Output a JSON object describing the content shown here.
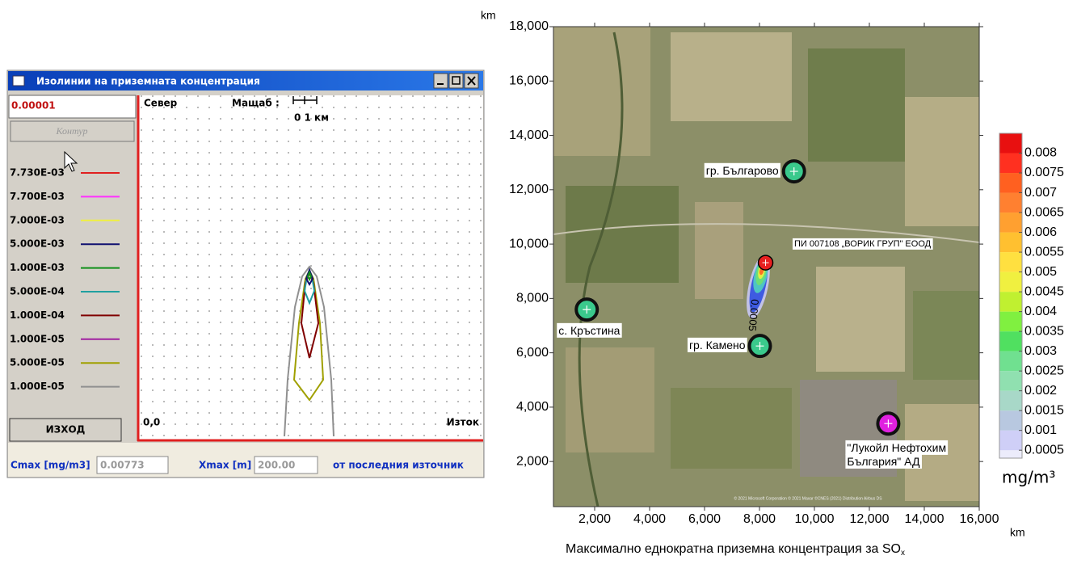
{
  "window": {
    "title": "Изолинии на приземната концентрация",
    "input": "0.00001",
    "contour_button": "Контур",
    "legend": [
      {
        "label": "7.730E-03",
        "color": "#e02020"
      },
      {
        "label": "7.700E-03",
        "color": "#ff30ff"
      },
      {
        "label": "7.000E-03",
        "color": "#f0f040"
      },
      {
        "label": "5.000E-03",
        "color": "#101070"
      },
      {
        "label": "1.000E-03",
        "color": "#10901a"
      },
      {
        "label": "5.000E-04",
        "color": "#20a0a0"
      },
      {
        "label": "1.000E-04",
        "color": "#800000"
      },
      {
        "label": "1.000E-05",
        "color": "#a020a0"
      },
      {
        "label": "5.000E-05",
        "color": "#a0a000"
      },
      {
        "label": "1.000E-05",
        "color": "#909090"
      }
    ],
    "exit_button": "ИЗХОД",
    "north": "Север",
    "scale_label": "Мащаб :",
    "scale_text": "0  1 км",
    "origin": "0,0",
    "east": "Изток",
    "cmax_label": "Cmax [mg/m3]",
    "cmax_value": "0.00773",
    "xmax_label": "Xmax [m]",
    "xmax_value": "200.00",
    "from_source": "от последния източник"
  },
  "map": {
    "y_unit": "km",
    "x_unit": "km",
    "xlim": [
      500,
      16000
    ],
    "ylim": [
      340,
      18000
    ],
    "xticks": [
      {
        "value": 2000,
        "label": "2,000"
      },
      {
        "value": 4000,
        "label": "4,000"
      },
      {
        "value": 6000,
        "label": "6,000"
      },
      {
        "value": 8000,
        "label": "8,000"
      },
      {
        "value": 10000,
        "label": "10,000"
      },
      {
        "value": 12000,
        "label": "12,000"
      },
      {
        "value": 14000,
        "label": "14,000"
      },
      {
        "value": 16000,
        "label": "16,000"
      }
    ],
    "yticks": [
      {
        "value": 2000,
        "label": "2,000"
      },
      {
        "value": 4000,
        "label": "4,000"
      },
      {
        "value": 6000,
        "label": "6,000"
      },
      {
        "value": 8000,
        "label": "8,000"
      },
      {
        "value": 10000,
        "label": "10,000"
      },
      {
        "value": 12000,
        "label": "12,000"
      },
      {
        "value": 14000,
        "label": "14,000"
      },
      {
        "value": 16000,
        "label": "16,000"
      },
      {
        "value": 18000,
        "label": "18,000"
      }
    ],
    "markers": [
      {
        "lines": [
          "гр. Българово"
        ],
        "x": 9257,
        "y": 12676,
        "color": "#3ac98c"
      },
      {
        "lines": [
          "с. Кръстина"
        ],
        "x": 1713,
        "y": 7590,
        "color": "#3ac98c"
      },
      {
        "lines": [
          "гр. Камено"
        ],
        "x": 8015,
        "y": 6251,
        "color": "#3ac98c"
      },
      {
        "lines": [
          "\"Лукойл Нефтохим",
          "България\" АД"
        ],
        "x": 12689,
        "y": 3396,
        "color": "#e020e0"
      }
    ],
    "source": {
      "label": "ПИ 007108 „ВОРИК ГРУП\" ЕООД",
      "x": 8222,
      "y": 9315,
      "color": "#e82020"
    },
    "plume_label": "0.0005",
    "attribution": "© 2021 Microsoft Corporation © 2021 Maxar ©CNES (2021) Distribution Airbus DS",
    "caption": "Максимално еднократна приземна  концентрация за SO",
    "caption_sub": "x"
  },
  "colorbar": {
    "clim": [
      0.0003,
      0.0085
    ],
    "ticks": [
      0.0005,
      0.001,
      0.0015,
      0.002,
      0.0025,
      0.003,
      0.0035,
      0.004,
      0.0045,
      0.005,
      0.0055,
      0.006,
      0.0065,
      0.007,
      0.0075,
      0.008
    ],
    "band_colors": [
      "#ececfb",
      "#cfcff7",
      "#b8c8e0",
      "#a8d8c8",
      "#90e0b0",
      "#70e090",
      "#50e060",
      "#80f040",
      "#c0f030",
      "#f0f040",
      "#ffe040",
      "#ffc030",
      "#ffa030",
      "#ff8030",
      "#ff6020",
      "#ff3020",
      "#e81010"
    ],
    "unit": "mg/m³"
  }
}
